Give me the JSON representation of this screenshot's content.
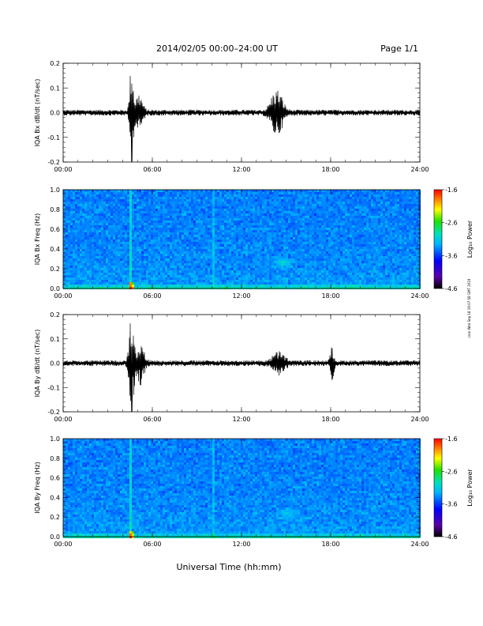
{
  "header": {
    "title": "2014/02/05  00:00–24:00 UT",
    "page": "Page 1/1"
  },
  "footer": {
    "xlabel": "Universal Time (hh:mm)",
    "timestamp": "cron Wed Sep 18 19:07:58 GMT 2019"
  },
  "chart_data": [
    {
      "type": "line",
      "title": "",
      "xlabel": "",
      "ylabel": "IQA Bx dB/dt (nT/sec)",
      "x_ticks": [
        "00:00",
        "06:00",
        "12:00",
        "18:00",
        "24:00"
      ],
      "xlim_hours": [
        0,
        24
      ],
      "ylim": [
        -0.2,
        0.2
      ],
      "y_ticks": [
        "-0.2",
        "-0.1",
        "0.0",
        "0.1",
        "0.2"
      ],
      "grid": false,
      "series_color": "#000000",
      "noise_level": 0.012,
      "events": [
        {
          "t": 4.6,
          "amp": 0.2,
          "width": 0.15
        },
        {
          "t": 5.1,
          "amp": 0.07,
          "width": 0.3
        },
        {
          "t": 14.5,
          "amp": 0.07,
          "width": 0.4
        },
        {
          "t": 14.1,
          "amp": 0.04,
          "width": 0.35
        }
      ]
    },
    {
      "type": "heatmap",
      "title": "",
      "xlabel": "",
      "ylabel": "IQA Bx Freq (Hz)",
      "x_ticks": [
        "00:00",
        "06:00",
        "12:00",
        "18:00",
        "24:00"
      ],
      "xlim_hours": [
        0,
        24
      ],
      "ylim": [
        0,
        1.0
      ],
      "y_ticks": [
        "0.0",
        "0.2",
        "0.4",
        "0.6",
        "0.8",
        "1.0"
      ],
      "colorbar": {
        "label": "Log₁₀ Power",
        "ticks": [
          "-1.6",
          "-2.6",
          "-3.6",
          "-4.6"
        ],
        "range": [
          -4.6,
          -1.6
        ]
      },
      "features": [
        {
          "kind": "vertical-line",
          "t": 4.6,
          "strength": "high"
        },
        {
          "kind": "vertical-line",
          "t": 10.1,
          "strength": "low"
        },
        {
          "kind": "patch",
          "t": 14.8,
          "f": 0.27,
          "strength": "medium"
        },
        {
          "kind": "low-frequency-band",
          "f_max": 0.05,
          "strength": "high"
        }
      ]
    },
    {
      "type": "line",
      "title": "",
      "xlabel": "",
      "ylabel": "IQA By dB/dt (nT/sec)",
      "x_ticks": [
        "00:00",
        "06:00",
        "12:00",
        "18:00",
        "24:00"
      ],
      "xlim_hours": [
        0,
        24
      ],
      "ylim": [
        -0.2,
        0.2
      ],
      "y_ticks": [
        "-0.2",
        "-0.1",
        "0.0",
        "0.1",
        "0.2"
      ],
      "grid": false,
      "series_color": "#000000",
      "noise_level": 0.012,
      "events": [
        {
          "t": 4.6,
          "amp": 0.2,
          "width": 0.2
        },
        {
          "t": 5.2,
          "amp": 0.08,
          "width": 0.3
        },
        {
          "t": 14.5,
          "amp": 0.04,
          "width": 0.5
        },
        {
          "t": 18.1,
          "amp": 0.06,
          "width": 0.15
        }
      ]
    },
    {
      "type": "heatmap",
      "title": "",
      "xlabel": "Universal Time (hh:mm)",
      "ylabel": "IQA By Freq (Hz)",
      "x_ticks": [
        "00:00",
        "06:00",
        "12:00",
        "18:00",
        "24:00"
      ],
      "xlim_hours": [
        0,
        24
      ],
      "ylim": [
        0,
        1.0
      ],
      "y_ticks": [
        "0.0",
        "0.2",
        "0.4",
        "0.6",
        "0.8",
        "1.0"
      ],
      "colorbar": {
        "label": "Log₁₀ Power",
        "ticks": [
          "-1.6",
          "-2.6",
          "-3.6",
          "-4.6"
        ],
        "range": [
          -4.6,
          -1.6
        ]
      },
      "features": [
        {
          "kind": "vertical-line",
          "t": 4.6,
          "strength": "high"
        },
        {
          "kind": "vertical-line",
          "t": 10.1,
          "strength": "low"
        },
        {
          "kind": "patch",
          "t": 15.0,
          "f": 0.25,
          "strength": "medium"
        },
        {
          "kind": "low-frequency-band",
          "f_max": 0.05,
          "strength": "high"
        }
      ]
    }
  ]
}
